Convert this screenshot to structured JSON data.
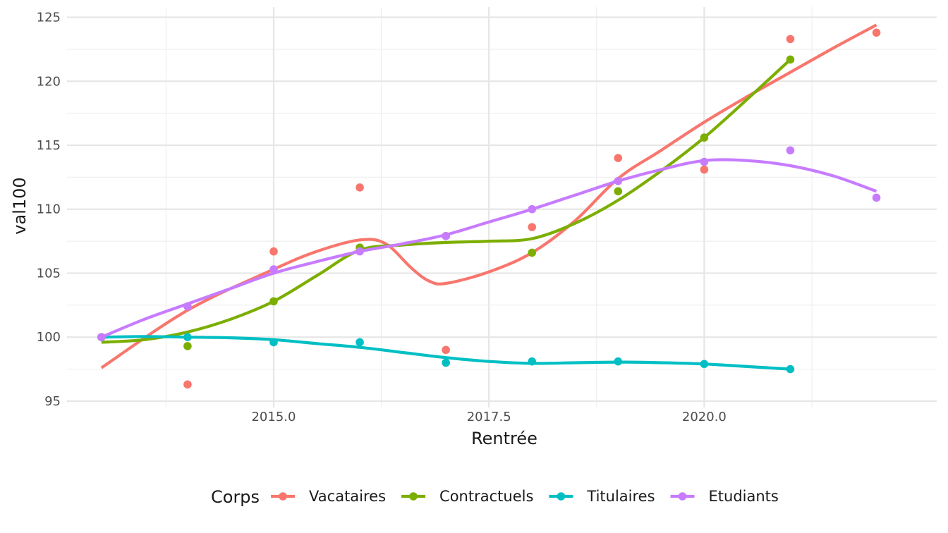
{
  "chart_data": {
    "type": "line",
    "xlabel": "Rentrée",
    "ylabel": "val100",
    "xlim": [
      2012.6,
      2022.7
    ],
    "ylim": [
      94.5,
      125.8
    ],
    "x_ticks": [
      {
        "value": 2015,
        "label": "2015.0"
      },
      {
        "value": 2017.5,
        "label": "2017.5"
      },
      {
        "value": 2020,
        "label": "2020.0"
      }
    ],
    "y_ticks": [
      {
        "value": 95,
        "label": "95"
      },
      {
        "value": 100,
        "label": "100"
      },
      {
        "value": 105,
        "label": "105"
      },
      {
        "value": 110,
        "label": "110"
      },
      {
        "value": 115,
        "label": "115"
      },
      {
        "value": 120,
        "label": "120"
      },
      {
        "value": 125,
        "label": "125"
      }
    ],
    "legend_title": "Corps",
    "legend_position": "bottom",
    "grid": true,
    "series": [
      {
        "name": "Vacataires",
        "color": "#F8766D",
        "points": [
          [
            2013,
            100
          ],
          [
            2014,
            96.3
          ],
          [
            2015,
            106.7
          ],
          [
            2016,
            111.7
          ],
          [
            2017,
            99.0
          ],
          [
            2018,
            108.6
          ],
          [
            2019,
            114.0
          ],
          [
            2020,
            113.1
          ],
          [
            2021,
            123.3
          ],
          [
            2022,
            123.8
          ]
        ],
        "smooth": [
          [
            2013,
            97.6
          ],
          [
            2014,
            102.1
          ],
          [
            2015,
            105.3
          ],
          [
            2015.5,
            106.7
          ],
          [
            2016,
            107.6
          ],
          [
            2016.3,
            107.3
          ],
          [
            2016.6,
            105.4
          ],
          [
            2016.8,
            104.4
          ],
          [
            2017,
            104.2
          ],
          [
            2017.5,
            105.1
          ],
          [
            2018,
            106.6
          ],
          [
            2018.5,
            109.1
          ],
          [
            2019,
            112.4
          ],
          [
            2019.5,
            114.6
          ],
          [
            2020,
            116.8
          ],
          [
            2020.5,
            118.8
          ],
          [
            2021,
            120.7
          ],
          [
            2021.5,
            122.6
          ],
          [
            2022,
            124.4
          ]
        ]
      },
      {
        "name": "Contractuels",
        "color": "#7CAE00",
        "points": [
          [
            2013,
            100
          ],
          [
            2014,
            99.3
          ],
          [
            2015,
            102.8
          ],
          [
            2016,
            107.0
          ],
          [
            2017,
            107.9
          ],
          [
            2018,
            106.6
          ],
          [
            2019,
            111.4
          ],
          [
            2020,
            115.6
          ],
          [
            2021,
            121.7
          ]
        ],
        "smooth": [
          [
            2013,
            99.6
          ],
          [
            2013.5,
            99.8
          ],
          [
            2014,
            100.4
          ],
          [
            2014.5,
            101.4
          ],
          [
            2015,
            102.8
          ],
          [
            2015.5,
            104.8
          ],
          [
            2016,
            106.8
          ],
          [
            2016.5,
            107.2
          ],
          [
            2017,
            107.4
          ],
          [
            2017.5,
            107.5
          ],
          [
            2018,
            107.7
          ],
          [
            2018.5,
            108.9
          ],
          [
            2019,
            110.7
          ],
          [
            2019.5,
            113.0
          ],
          [
            2020,
            115.6
          ],
          [
            2020.5,
            118.6
          ],
          [
            2021,
            121.7
          ]
        ]
      },
      {
        "name": "Titulaires",
        "color": "#00BFC4",
        "points": [
          [
            2013,
            100
          ],
          [
            2014,
            100.0
          ],
          [
            2015,
            99.6
          ],
          [
            2016,
            99.6
          ],
          [
            2017,
            98.0
          ],
          [
            2018,
            98.1
          ],
          [
            2019,
            98.1
          ],
          [
            2020,
            97.9
          ],
          [
            2021,
            97.5
          ]
        ],
        "smooth": [
          [
            2013,
            100.0
          ],
          [
            2013.5,
            100.05
          ],
          [
            2014,
            100.0
          ],
          [
            2014.5,
            99.95
          ],
          [
            2015,
            99.8
          ],
          [
            2015.5,
            99.5
          ],
          [
            2016,
            99.2
          ],
          [
            2016.5,
            98.8
          ],
          [
            2017,
            98.4
          ],
          [
            2017.5,
            98.1
          ],
          [
            2018,
            97.95
          ],
          [
            2018.5,
            98.0
          ],
          [
            2019,
            98.05
          ],
          [
            2019.5,
            98.0
          ],
          [
            2020,
            97.9
          ],
          [
            2020.5,
            97.7
          ],
          [
            2021,
            97.5
          ]
        ]
      },
      {
        "name": "Etudiants",
        "color": "#C77CFF",
        "points": [
          [
            2013,
            100
          ],
          [
            2014,
            102.4
          ],
          [
            2015,
            105.3
          ],
          [
            2016,
            106.7
          ],
          [
            2017,
            107.9
          ],
          [
            2018,
            110.0
          ],
          [
            2019,
            112.2
          ],
          [
            2020,
            113.7
          ],
          [
            2021,
            114.6
          ],
          [
            2022,
            110.9
          ]
        ],
        "smooth": [
          [
            2013,
            100.0
          ],
          [
            2013.5,
            101.4
          ],
          [
            2014,
            102.6
          ],
          [
            2014.5,
            103.8
          ],
          [
            2015,
            105.0
          ],
          [
            2015.5,
            105.9
          ],
          [
            2016,
            106.7
          ],
          [
            2016.5,
            107.3
          ],
          [
            2017,
            108.0
          ],
          [
            2017.5,
            109.0
          ],
          [
            2018,
            110.0
          ],
          [
            2018.5,
            111.1
          ],
          [
            2019,
            112.2
          ],
          [
            2019.5,
            113.1
          ],
          [
            2020,
            113.8
          ],
          [
            2020.5,
            113.8
          ],
          [
            2021,
            113.4
          ],
          [
            2021.5,
            112.6
          ],
          [
            2022,
            111.4
          ]
        ]
      }
    ]
  }
}
